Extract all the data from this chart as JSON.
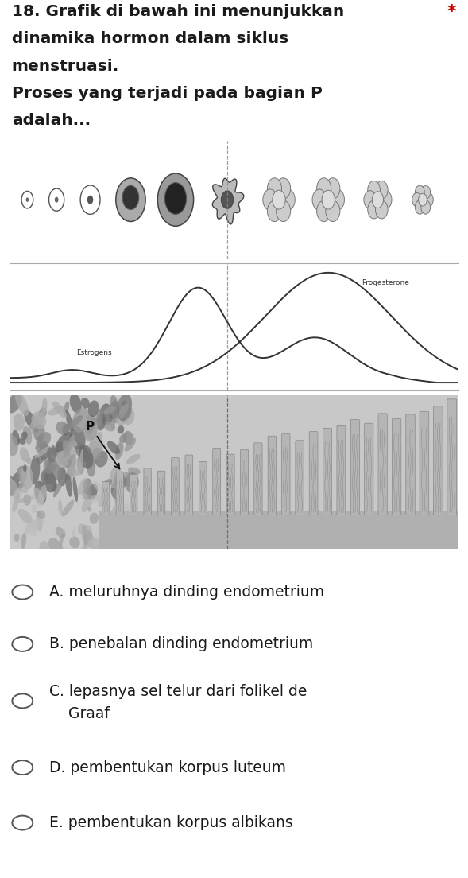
{
  "title_line1": "18. Grafik di bawah ini menunjukkan",
  "title_line2": "dinamika hormon dalam siklus",
  "title_line3": "menstruasi.",
  "title_line4": "Proses yang terjadi pada bagian P",
  "title_line5": "adalah...",
  "star_marker": "*",
  "bg_color": "#ffffff",
  "text_color": "#1a1a1a",
  "star_color": "#cc0000",
  "hormone_labels": [
    "Estrogens",
    "Progesterone"
  ],
  "curve_color": "#333333",
  "label_P": "P",
  "title_fontsize": 14.5,
  "option_fontsize": 13.5,
  "option_A": "A. meluruhnya dinding endometrium",
  "option_B": "B. penebalan dinding endometrium",
  "option_C1": "C. lepasnya sel telur dari folikel de",
  "option_C2": "    Graaf",
  "option_D": "D. pembentukan korpus luteum",
  "option_E": "E. pembentukan korpus albikans"
}
